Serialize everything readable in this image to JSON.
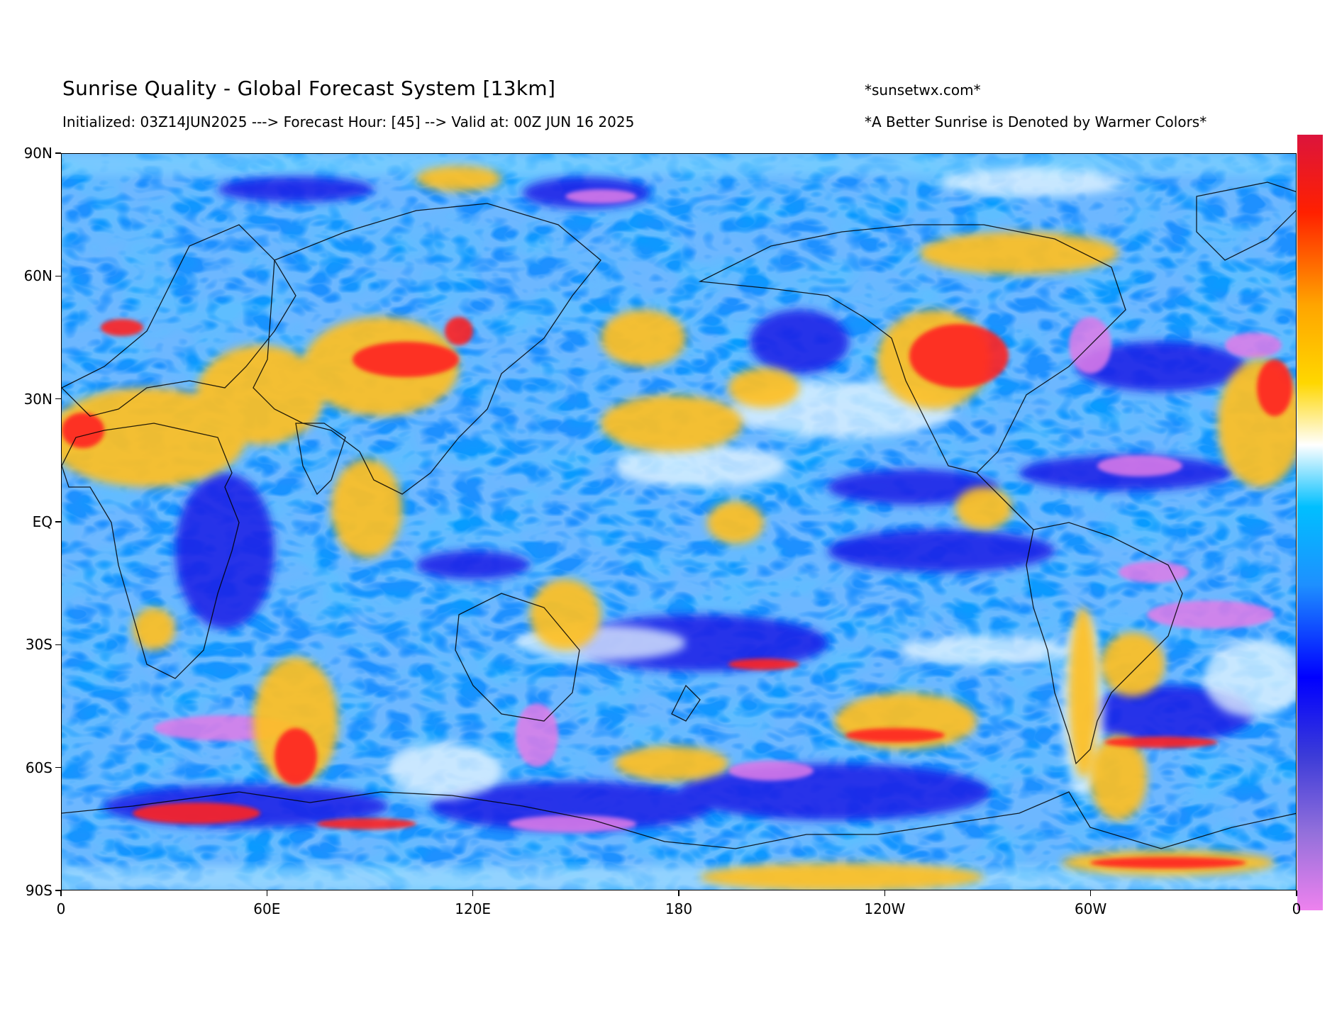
{
  "header": {
    "title": "Sunrise Quality - Global Forecast System [13km]",
    "subtitle": "Initialized: 03Z14JUN2025 ---> Forecast Hour: [45] --> Valid at: 00Z JUN 16 2025",
    "site": "*sunsetwx.com*",
    "note": "*A Better Sunrise is Denoted by Warmer Colors*"
  },
  "map": {
    "projection": "equirectangular",
    "lat_ticks": [
      "90N",
      "60N",
      "30N",
      "EQ",
      "30S",
      "60S",
      "90S"
    ],
    "lon_ticks": [
      "0",
      "60E",
      "120E",
      "180",
      "120W",
      "60W",
      "0"
    ],
    "field": "sunrise quality",
    "base_color": "#1e90ff"
  },
  "colorbar": {
    "orientation": "vertical",
    "tick_labels": [],
    "colors_bottom_to_top": [
      "#ee82ee",
      "#9370db",
      "#0000ff",
      "#1e90ff",
      "#00bfff",
      "#ffffff",
      "#ffd700",
      "#ffa500",
      "#ff0000",
      "#dc143c"
    ]
  }
}
